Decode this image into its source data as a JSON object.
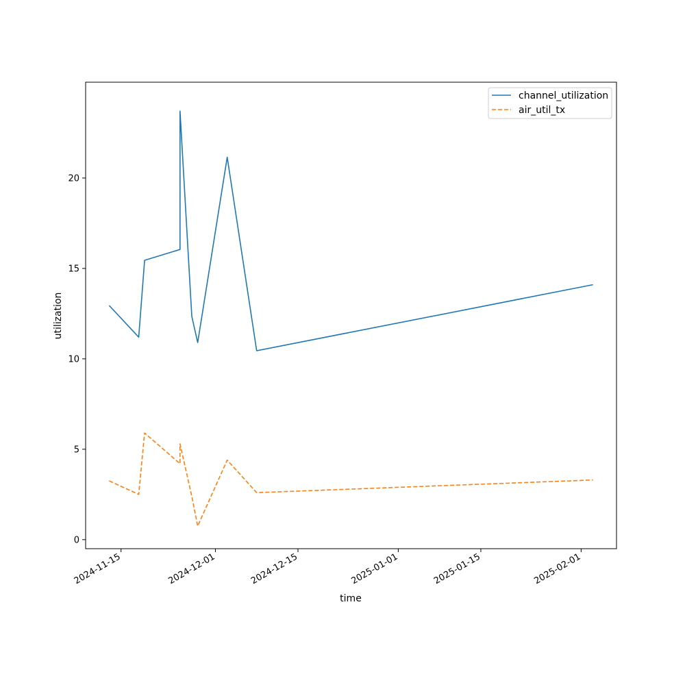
{
  "chart_data": {
    "type": "line",
    "title": "",
    "xlabel": "time",
    "ylabel": "utilization",
    "x_type": "date",
    "xlim": [
      "2024-11-09",
      "2025-02-07"
    ],
    "ylim": [
      -0.5,
      25.3
    ],
    "x_ticks": [
      "2024-11-15",
      "2024-12-01",
      "2024-12-15",
      "2025-01-01",
      "2025-01-15",
      "2025-02-01"
    ],
    "y_ticks": [
      0,
      5,
      10,
      15,
      20
    ],
    "grid": false,
    "legend_position": "top-right",
    "x": [
      "2024-11-13",
      "2024-11-18",
      "2024-11-19",
      "2024-11-25",
      "2024-11-25",
      "2024-11-27",
      "2024-11-28",
      "2024-12-03",
      "2024-12-08",
      "2025-02-03"
    ],
    "series": [
      {
        "name": "channel_utilization",
        "color": "#1f77b4",
        "style": "solid",
        "values": [
          12.95,
          11.2,
          15.45,
          16.05,
          23.7,
          12.35,
          10.9,
          21.15,
          10.45,
          14.1
        ]
      },
      {
        "name": "air_util_tx",
        "color": "#ff7f0e",
        "style": "dashed",
        "values": [
          3.25,
          2.5,
          5.9,
          4.2,
          5.3,
          2.4,
          0.75,
          4.4,
          2.6,
          3.3
        ]
      }
    ]
  }
}
